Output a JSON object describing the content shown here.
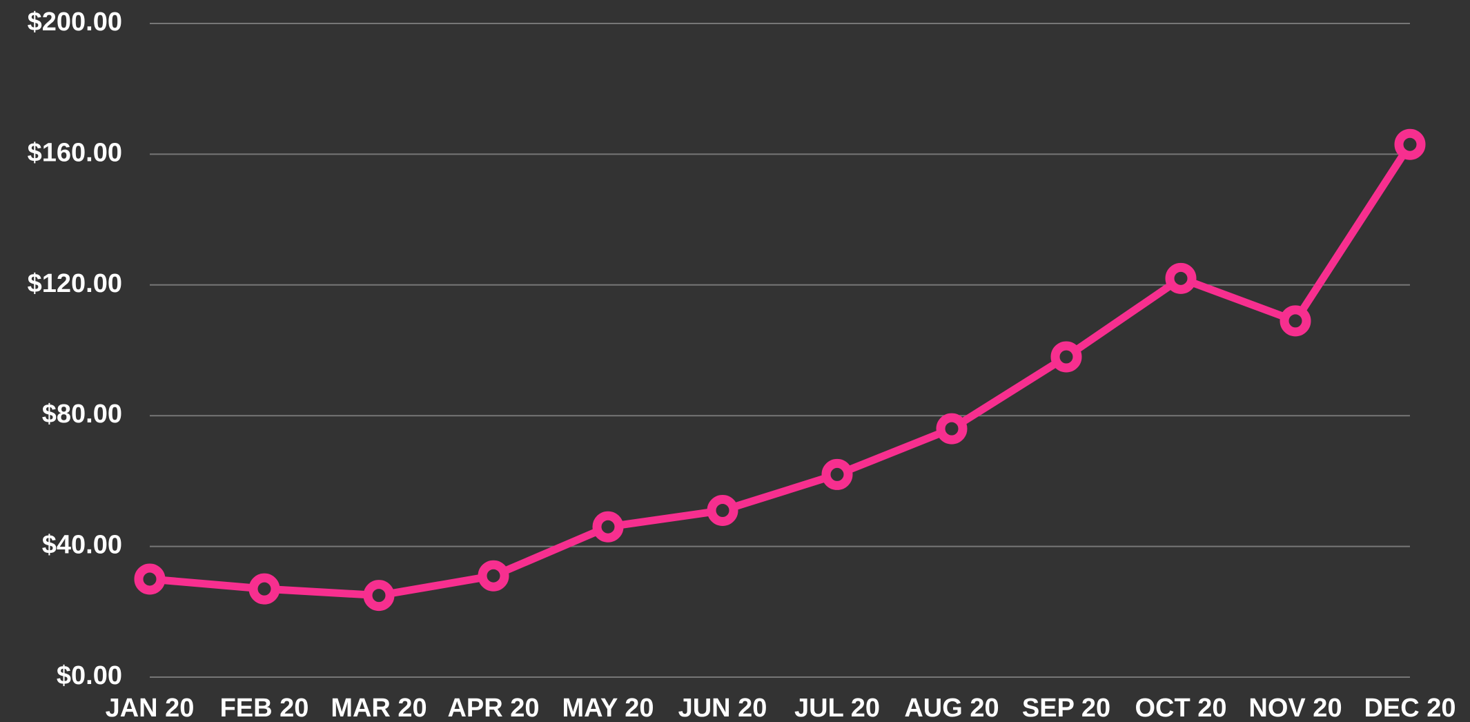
{
  "chart_data": {
    "type": "line",
    "categories": [
      "JAN 20",
      "FEB 20",
      "MAR 20",
      "APR 20",
      "MAY 20",
      "JUN 20",
      "JUL 20",
      "AUG 20",
      "SEP 20",
      "OCT 20",
      "NOV 20",
      "DEC 20"
    ],
    "series": [
      {
        "color": "#f72f8f",
        "values": [
          30,
          27,
          25,
          31,
          46,
          51,
          62,
          76,
          98,
          122,
          109,
          163
        ]
      }
    ],
    "ylim": [
      0,
      200
    ],
    "yticks": [
      {
        "value": 0,
        "label": "$0.00"
      },
      {
        "value": 40,
        "label": "$40.00"
      },
      {
        "value": 80,
        "label": "$80.00"
      },
      {
        "value": 120,
        "label": "$120.00"
      },
      {
        "value": 160,
        "label": "$160.00"
      },
      {
        "value": 200,
        "label": "$200.00"
      }
    ],
    "grid": true
  }
}
